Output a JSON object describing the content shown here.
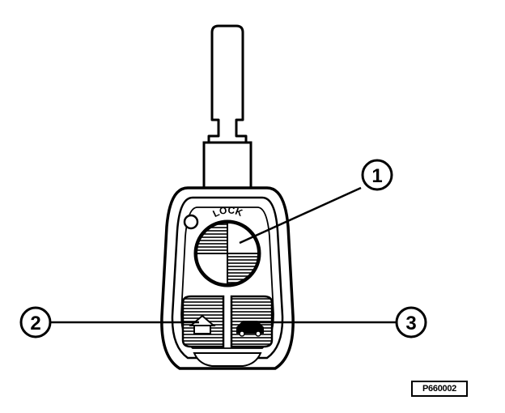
{
  "key": {
    "lock_label": "LOCK"
  },
  "callouts": [
    {
      "number": "1",
      "target": "lock-button"
    },
    {
      "number": "2",
      "target": "unlock-button"
    },
    {
      "number": "3",
      "target": "trunk-button"
    }
  ],
  "reference_code": "P660002"
}
